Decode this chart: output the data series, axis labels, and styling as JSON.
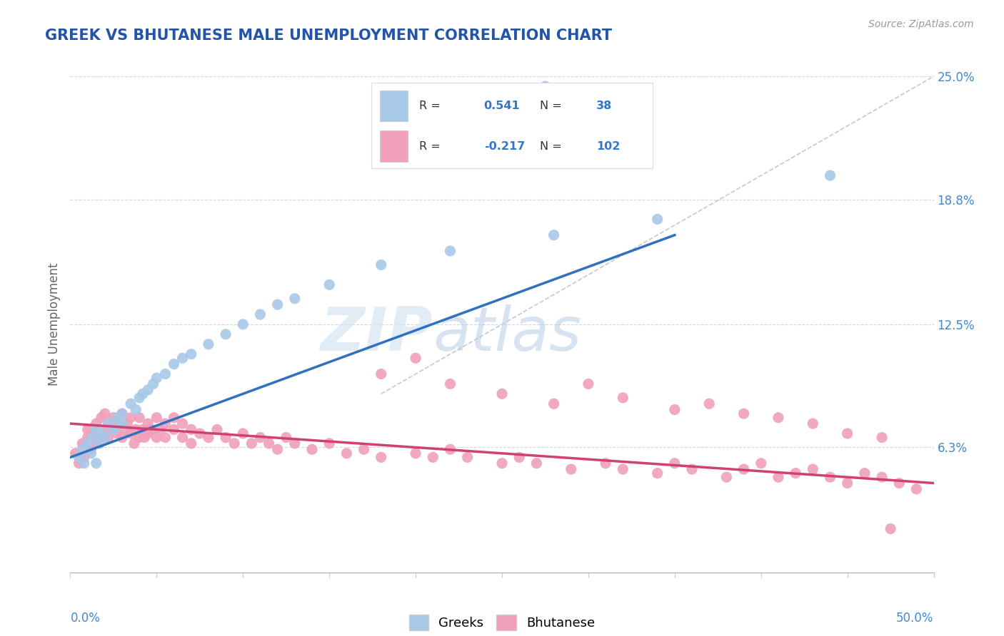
{
  "title": "GREEK VS BHUTANESE MALE UNEMPLOYMENT CORRELATION CHART",
  "source": "Source: ZipAtlas.com",
  "ylabel": "Male Unemployment",
  "xlim": [
    0.0,
    0.5
  ],
  "ylim": [
    0.0,
    0.25
  ],
  "yticks": [
    0.063,
    0.125,
    0.188,
    0.25
  ],
  "ytick_labels": [
    "6.3%",
    "12.5%",
    "18.8%",
    "25.0%"
  ],
  "xtick_left_label": "0.0%",
  "xtick_right_label": "50.0%",
  "greek_R": 0.541,
  "greek_N": 38,
  "bhutanese_R": -0.217,
  "bhutanese_N": 102,
  "greek_color": "#a8c8e8",
  "bhutanese_color": "#f0a0b8",
  "greek_line_color": "#3070c0",
  "bhutanese_line_color": "#d04070",
  "diagonal_color": "#c0c8d8",
  "background_color": "#ffffff",
  "grid_color": "#d0d8e8",
  "title_color": "#2255aa",
  "axis_label_color": "#666666",
  "tick_color": "#4488cc",
  "legend_label_greek": "Greeks",
  "legend_label_bhutanese": "Bhutanese",
  "watermark_zip": "ZIP",
  "watermark_atlas": "atlas",
  "greek_x": [
    0.005,
    0.007,
    0.008,
    0.01,
    0.012,
    0.013,
    0.015,
    0.015,
    0.017,
    0.018,
    0.02,
    0.022,
    0.025,
    0.027,
    0.03,
    0.03,
    0.035,
    0.038,
    0.04,
    0.042,
    0.045,
    0.048,
    0.05,
    0.055,
    0.06,
    0.065,
    0.07,
    0.08,
    0.09,
    0.1,
    0.11,
    0.12,
    0.13,
    0.15,
    0.18,
    0.22,
    0.28,
    0.34
  ],
  "greek_y": [
    0.058,
    0.062,
    0.055,
    0.065,
    0.06,
    0.068,
    0.055,
    0.072,
    0.065,
    0.07,
    0.068,
    0.075,
    0.072,
    0.078,
    0.08,
    0.075,
    0.085,
    0.082,
    0.088,
    0.09,
    0.092,
    0.095,
    0.098,
    0.1,
    0.105,
    0.108,
    0.11,
    0.115,
    0.12,
    0.125,
    0.13,
    0.135,
    0.138,
    0.145,
    0.155,
    0.162,
    0.17,
    0.178
  ],
  "greek_outlier_x": [
    0.275
  ],
  "greek_outlier_y": [
    0.245
  ],
  "greek_outlier2_x": [
    0.44
  ],
  "greek_outlier2_y": [
    0.2
  ],
  "bhutanese_x": [
    0.003,
    0.005,
    0.007,
    0.008,
    0.01,
    0.01,
    0.012,
    0.013,
    0.015,
    0.015,
    0.017,
    0.018,
    0.02,
    0.02,
    0.022,
    0.022,
    0.025,
    0.025,
    0.027,
    0.028,
    0.03,
    0.03,
    0.032,
    0.033,
    0.035,
    0.035,
    0.037,
    0.038,
    0.04,
    0.04,
    0.042,
    0.043,
    0.045,
    0.045,
    0.047,
    0.05,
    0.05,
    0.052,
    0.055,
    0.055,
    0.06,
    0.06,
    0.065,
    0.065,
    0.07,
    0.07,
    0.075,
    0.08,
    0.085,
    0.09,
    0.095,
    0.1,
    0.105,
    0.11,
    0.115,
    0.12,
    0.125,
    0.13,
    0.14,
    0.15,
    0.16,
    0.17,
    0.18,
    0.2,
    0.21,
    0.22,
    0.23,
    0.25,
    0.26,
    0.27,
    0.29,
    0.31,
    0.32,
    0.34,
    0.35,
    0.36,
    0.38,
    0.39,
    0.4,
    0.41,
    0.42,
    0.43,
    0.44,
    0.45,
    0.46,
    0.47,
    0.48,
    0.49,
    0.18,
    0.2,
    0.22,
    0.25,
    0.28,
    0.3,
    0.32,
    0.35,
    0.37,
    0.39,
    0.41,
    0.43,
    0.45,
    0.47
  ],
  "bhutanese_y": [
    0.06,
    0.055,
    0.065,
    0.058,
    0.068,
    0.072,
    0.062,
    0.07,
    0.065,
    0.075,
    0.068,
    0.078,
    0.072,
    0.08,
    0.068,
    0.075,
    0.072,
    0.078,
    0.07,
    0.075,
    0.068,
    0.08,
    0.072,
    0.075,
    0.07,
    0.078,
    0.065,
    0.072,
    0.068,
    0.078,
    0.072,
    0.068,
    0.075,
    0.07,
    0.072,
    0.078,
    0.068,
    0.072,
    0.075,
    0.068,
    0.072,
    0.078,
    0.068,
    0.075,
    0.072,
    0.065,
    0.07,
    0.068,
    0.072,
    0.068,
    0.065,
    0.07,
    0.065,
    0.068,
    0.065,
    0.062,
    0.068,
    0.065,
    0.062,
    0.065,
    0.06,
    0.062,
    0.058,
    0.06,
    0.058,
    0.062,
    0.058,
    0.055,
    0.058,
    0.055,
    0.052,
    0.055,
    0.052,
    0.05,
    0.055,
    0.052,
    0.048,
    0.052,
    0.055,
    0.048,
    0.05,
    0.052,
    0.048,
    0.045,
    0.05,
    0.048,
    0.045,
    0.042,
    0.1,
    0.108,
    0.095,
    0.09,
    0.085,
    0.095,
    0.088,
    0.082,
    0.085,
    0.08,
    0.078,
    0.075,
    0.07,
    0.068
  ],
  "bhutanese_outlier_x": [
    0.475
  ],
  "bhutanese_outlier_y": [
    0.022
  ],
  "greek_trend_x0": 0.0,
  "greek_trend_y0": 0.058,
  "greek_trend_x1": 0.35,
  "greek_trend_y1": 0.17,
  "bhutanese_trend_x0": 0.0,
  "bhutanese_trend_y0": 0.075,
  "bhutanese_trend_x1": 0.5,
  "bhutanese_trend_y1": 0.045
}
